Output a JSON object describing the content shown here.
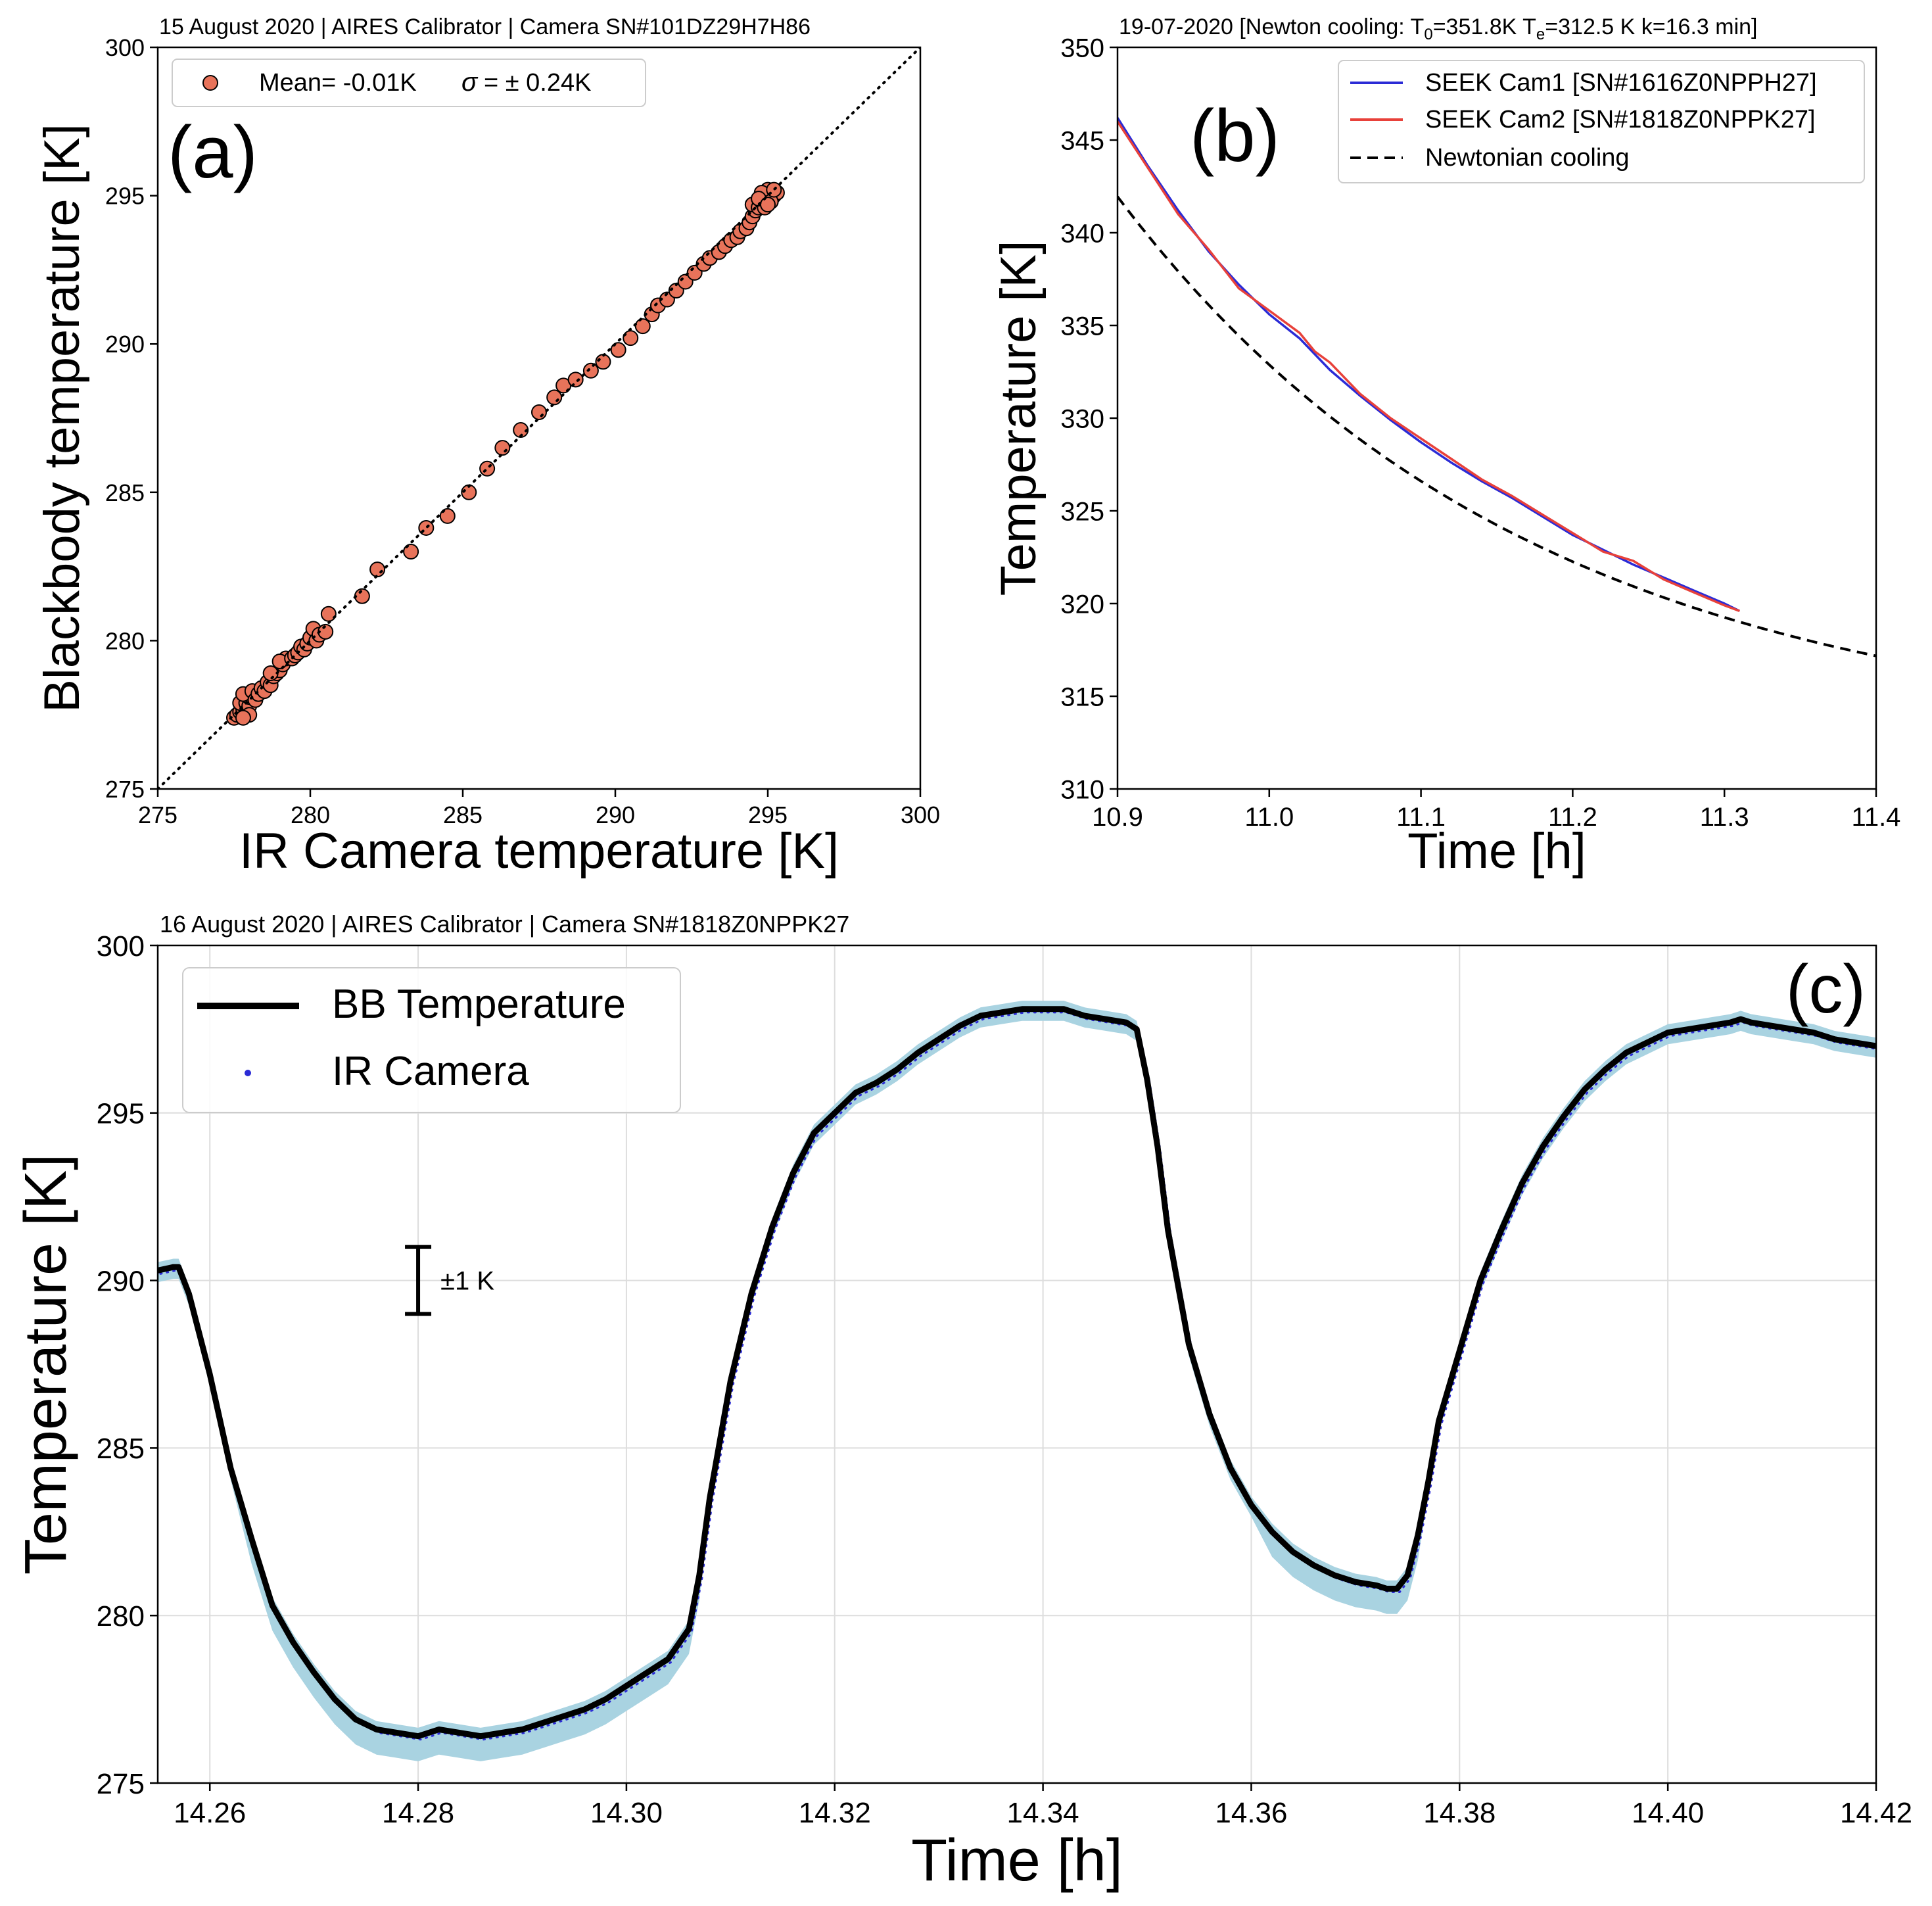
{
  "colors": {
    "scatter_fill": "#e8735a",
    "cam1": "#2b2bd6",
    "cam2": "#e8413a",
    "band": "#a9d3e1",
    "grid": "#dddddd"
  },
  "chart_data": [
    {
      "id": "a",
      "type": "scatter",
      "panel_label": "(a)",
      "title": "15 August 2020  |  AIRES Calibrator  | Camera SN#101DZ29H7H86",
      "xlabel": "IR Camera temperature [K]",
      "ylabel": "Blackbody temperature [K]",
      "xlim": [
        275,
        300
      ],
      "ylim": [
        275,
        300
      ],
      "xticks": [
        275,
        280,
        285,
        290,
        295,
        300
      ],
      "yticks": [
        275,
        280,
        285,
        290,
        295,
        300
      ],
      "xtick_labels": [
        "275",
        "280",
        "285",
        "290",
        "295",
        "300"
      ],
      "ytick_labels": [
        "275",
        "280",
        "285",
        "290",
        "295",
        "300"
      ],
      "grid": false,
      "legend_position": "top-left",
      "legend": {
        "mean_label": "Mean= -0.01K",
        "sigma_symbol": "σ",
        "sigma_label": "= ±  0.24K"
      },
      "reference_line": {
        "style": "dotted",
        "from": [
          275,
          275
        ],
        "to": [
          300,
          300
        ]
      },
      "points": [
        [
          277.5,
          277.4
        ],
        [
          277.6,
          277.5
        ],
        [
          277.7,
          277.6
        ],
        [
          277.8,
          277.7
        ],
        [
          277.9,
          277.6
        ],
        [
          277.7,
          277.9
        ],
        [
          277.9,
          277.9
        ],
        [
          278.0,
          277.8
        ],
        [
          278.0,
          278.1
        ],
        [
          277.8,
          278.2
        ],
        [
          278.1,
          278.3
        ],
        [
          278.2,
          278.0
        ],
        [
          278.3,
          278.2
        ],
        [
          278.0,
          277.5
        ],
        [
          277.8,
          277.4
        ],
        [
          278.4,
          278.4
        ],
        [
          278.5,
          278.3
        ],
        [
          278.6,
          278.6
        ],
        [
          278.7,
          278.5
        ],
        [
          278.8,
          278.8
        ],
        [
          278.9,
          278.9
        ],
        [
          279.0,
          279.0
        ],
        [
          278.7,
          278.9
        ],
        [
          279.1,
          279.2
        ],
        [
          279.2,
          279.4
        ],
        [
          279.0,
          279.3
        ],
        [
          279.4,
          279.4
        ],
        [
          279.5,
          279.5
        ],
        [
          279.6,
          279.6
        ],
        [
          279.7,
          279.8
        ],
        [
          279.8,
          279.7
        ],
        [
          279.9,
          279.9
        ],
        [
          280.0,
          280.1
        ],
        [
          280.1,
          280.4
        ],
        [
          280.2,
          280.0
        ],
        [
          280.3,
          280.2
        ],
        [
          280.5,
          280.3
        ],
        [
          280.6,
          280.9
        ],
        [
          281.7,
          281.5
        ],
        [
          282.2,
          282.4
        ],
        [
          283.3,
          283.0
        ],
        [
          283.8,
          283.8
        ],
        [
          284.5,
          284.2
        ],
        [
          285.2,
          285.0
        ],
        [
          285.8,
          285.8
        ],
        [
          286.3,
          286.5
        ],
        [
          286.9,
          287.1
        ],
        [
          287.5,
          287.7
        ],
        [
          288.0,
          288.2
        ],
        [
          288.3,
          288.6
        ],
        [
          288.7,
          288.8
        ],
        [
          289.2,
          289.1
        ],
        [
          289.6,
          289.4
        ],
        [
          290.1,
          289.8
        ],
        [
          290.5,
          290.2
        ],
        [
          290.9,
          290.6
        ],
        [
          291.2,
          291.0
        ],
        [
          291.4,
          291.3
        ],
        [
          291.7,
          291.5
        ],
        [
          292.0,
          291.8
        ],
        [
          292.3,
          292.1
        ],
        [
          292.6,
          292.4
        ],
        [
          292.9,
          292.7
        ],
        [
          293.1,
          292.9
        ],
        [
          293.4,
          293.1
        ],
        [
          293.6,
          293.3
        ],
        [
          293.8,
          293.5
        ],
        [
          294.0,
          293.6
        ],
        [
          294.1,
          293.8
        ],
        [
          294.3,
          293.9
        ],
        [
          294.4,
          294.1
        ],
        [
          294.5,
          294.3
        ],
        [
          294.6,
          294.5
        ],
        [
          294.5,
          294.7
        ],
        [
          294.7,
          294.6
        ],
        [
          294.8,
          294.8
        ],
        [
          294.9,
          294.9
        ],
        [
          295.0,
          295.0
        ],
        [
          295.1,
          295.1
        ],
        [
          295.2,
          295.0
        ],
        [
          295.0,
          295.2
        ],
        [
          294.8,
          295.1
        ],
        [
          295.3,
          295.1
        ],
        [
          295.1,
          294.8
        ],
        [
          294.9,
          294.6
        ],
        [
          295.2,
          295.2
        ],
        [
          294.7,
          294.9
        ],
        [
          295.0,
          294.7
        ]
      ]
    },
    {
      "id": "b",
      "type": "line",
      "panel_label": "(b)",
      "title_prefix": "19-07-2020 [Newton cooling: T",
      "title_sub0": "0",
      "title_mid": "=351.8K T",
      "title_sube": "e",
      "title_suffix": "=312.5 K k=16.3 min]",
      "xlabel": "Time [h]",
      "ylabel": "Temperature [K]",
      "xlim": [
        10.9,
        11.4
      ],
      "ylim": [
        310,
        350
      ],
      "xticks": [
        10.9,
        11.0,
        11.1,
        11.2,
        11.3,
        11.4
      ],
      "yticks": [
        310,
        315,
        320,
        325,
        330,
        335,
        340,
        345,
        350
      ],
      "xtick_labels": [
        "10.9",
        "11.0",
        "11.1",
        "11.2",
        "11.3",
        "11.4"
      ],
      "ytick_labels": [
        "310",
        "315",
        "320",
        "325",
        "330",
        "335",
        "340",
        "345",
        "350"
      ],
      "grid": false,
      "legend_position": "top-right",
      "newton": {
        "T0": 351.8,
        "Te": 312.5,
        "k_min": 16.3,
        "t_start": 10.9,
        "t_end": 11.4,
        "t0_h": 10.8216
      },
      "series": [
        {
          "name": "SEEK Cam1 [SN#1616Z0NPPH27]",
          "style": "solid",
          "x": [
            10.9,
            10.92,
            10.94,
            10.96,
            10.98,
            11.0,
            11.02,
            11.04,
            11.06,
            11.08,
            11.1,
            11.12,
            11.14,
            11.16,
            11.18,
            11.2,
            11.22,
            11.24,
            11.26,
            11.28,
            11.3,
            11.31
          ],
          "y": [
            346.2,
            343.6,
            341.2,
            339.0,
            337.2,
            335.6,
            334.3,
            332.6,
            331.2,
            329.9,
            328.7,
            327.6,
            326.6,
            325.7,
            324.7,
            323.7,
            322.9,
            322.1,
            321.4,
            320.7,
            320.0,
            319.6
          ]
        },
        {
          "name": "SEEK Cam2 [SN#1818Z0NPPK27]",
          "style": "solid",
          "x": [
            10.9,
            10.92,
            10.94,
            10.96,
            10.98,
            11.0,
            11.02,
            11.03,
            11.04,
            11.06,
            11.08,
            11.1,
            11.12,
            11.14,
            11.16,
            11.18,
            11.2,
            11.22,
            11.24,
            11.26,
            11.28,
            11.3,
            11.31
          ],
          "y": [
            346.0,
            343.5,
            341.0,
            339.1,
            337.0,
            335.8,
            334.6,
            333.6,
            333.0,
            331.3,
            330.0,
            328.9,
            327.8,
            326.7,
            325.8,
            324.8,
            323.8,
            322.8,
            322.3,
            321.3,
            320.6,
            319.9,
            319.6
          ]
        },
        {
          "name": "Newtonian cooling",
          "style": "dashed"
        }
      ]
    },
    {
      "id": "c",
      "type": "line",
      "panel_label": "(c)",
      "title": "16 August 2020  |  AIRES Calibrator  | Camera SN#1818Z0NPPK27",
      "xlabel": "Time [h]",
      "ylabel": "Temperature [K]",
      "xlim": [
        14.255,
        14.42
      ],
      "ylim": [
        275,
        300
      ],
      "xticks": [
        14.26,
        14.28,
        14.3,
        14.32,
        14.34,
        14.36,
        14.38,
        14.4,
        14.42
      ],
      "yticks": [
        275,
        280,
        285,
        290,
        295,
        300
      ],
      "xtick_labels": [
        "14.26",
        "14.28",
        "14.30",
        "14.32",
        "14.34",
        "14.36",
        "14.38",
        "14.40",
        "14.42"
      ],
      "ytick_labels": [
        "275",
        "280",
        "285",
        "290",
        "295",
        "300"
      ],
      "grid": true,
      "legend_position": "top-left",
      "error_bar": {
        "x": 14.28,
        "y": 290,
        "half": 1,
        "label": "±1 K"
      },
      "series": [
        {
          "name": "BB Temperature",
          "style": "thick-solid",
          "x": [
            14.255,
            14.2565,
            14.257,
            14.258,
            14.26,
            14.262,
            14.264,
            14.266,
            14.268,
            14.27,
            14.272,
            14.274,
            14.276,
            14.278,
            14.28,
            14.282,
            14.284,
            14.286,
            14.288,
            14.29,
            14.292,
            14.294,
            14.296,
            14.298,
            14.3,
            14.302,
            14.304,
            14.306,
            14.307,
            14.308,
            14.31,
            14.312,
            14.314,
            14.316,
            14.318,
            14.32,
            14.322,
            14.324,
            14.326,
            14.328,
            14.33,
            14.332,
            14.334,
            14.336,
            14.338,
            14.34,
            14.342,
            14.344,
            14.346,
            14.348,
            14.349,
            14.35,
            14.351,
            14.352,
            14.354,
            14.356,
            14.358,
            14.36,
            14.362,
            14.364,
            14.366,
            14.368,
            14.37,
            14.372,
            14.373,
            14.374,
            14.375,
            14.376,
            14.377,
            14.378,
            14.38,
            14.382,
            14.384,
            14.386,
            14.388,
            14.39,
            14.392,
            14.394,
            14.396,
            14.398,
            14.4,
            14.402,
            14.404,
            14.406,
            14.407,
            14.408,
            14.41,
            14.412,
            14.414,
            14.416,
            14.418,
            14.42
          ],
          "y": [
            290.3,
            290.4,
            290.4,
            289.6,
            287.2,
            284.4,
            282.3,
            280.3,
            279.2,
            278.3,
            277.5,
            276.9,
            276.6,
            276.5,
            276.4,
            276.6,
            276.5,
            276.4,
            276.5,
            276.6,
            276.8,
            277.0,
            277.2,
            277.5,
            277.9,
            278.3,
            278.7,
            279.6,
            281.2,
            283.5,
            287.0,
            289.6,
            291.6,
            293.2,
            294.4,
            295.0,
            295.6,
            295.9,
            296.3,
            296.8,
            297.2,
            297.6,
            297.9,
            298.0,
            298.1,
            298.1,
            298.1,
            297.9,
            297.8,
            297.7,
            297.5,
            296.0,
            294.0,
            291.5,
            288.1,
            286.0,
            284.4,
            283.3,
            282.5,
            281.9,
            281.5,
            281.2,
            281.0,
            280.9,
            280.8,
            280.8,
            281.2,
            282.4,
            284.0,
            285.8,
            287.9,
            290.0,
            291.5,
            292.9,
            294.0,
            294.9,
            295.7,
            296.3,
            296.8,
            297.1,
            297.4,
            297.5,
            297.6,
            297.7,
            297.8,
            297.7,
            297.6,
            297.5,
            297.4,
            297.2,
            297.1,
            297.0
          ]
        },
        {
          "name": "IR Camera",
          "style": "dots"
        }
      ]
    }
  ]
}
